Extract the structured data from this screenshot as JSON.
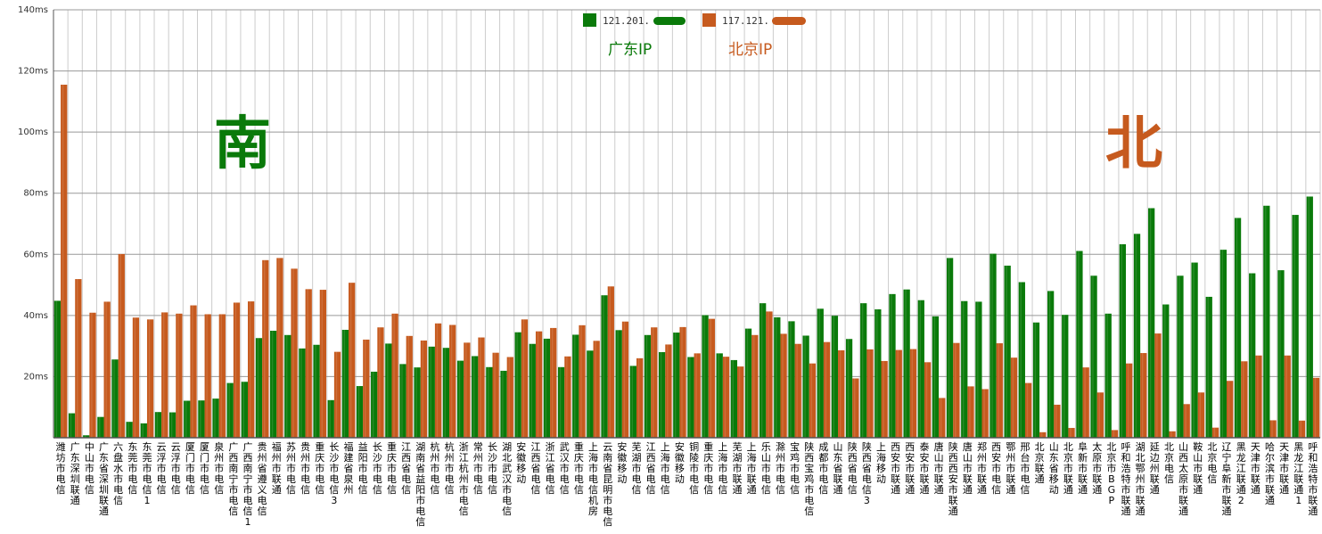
{
  "chart_data": {
    "type": "bar",
    "title": "",
    "xlabel": "",
    "ylabel": "",
    "ylim": [
      0,
      140
    ],
    "yticks": [
      "20ms",
      "40ms",
      "60ms",
      "80ms",
      "100ms",
      "120ms",
      "140ms"
    ],
    "grid": true,
    "legend_position": "top-center",
    "colors": {
      "guangdong": "#0a7a0a",
      "beijing": "#c65a1e",
      "grid": "#cccccc",
      "axis": "#555555"
    },
    "annotations": {
      "south": "南",
      "north": "北"
    },
    "categories": [
      "潍坊市电信",
      "广东深圳联通",
      "中山市电信",
      "广东省深圳联通",
      "六盘水市电信",
      "东莞市电信",
      "东莞市电信1",
      "云浮市电信",
      "云浮市电信",
      "厦门市电信",
      "厦门市电信",
      "泉州市电信",
      "广西南宁市电信",
      "广西南宁市电信1",
      "贵州省遵义电信",
      "福州市联通",
      "苏州市电信",
      "贵州市电信",
      "重庆市电信",
      "长沙市电信3",
      "福建省泉州",
      "益阳市电信",
      "长沙市电信",
      "重庆市电信",
      "江西省电信",
      "湖南省益阳市电信",
      "杭州市电信",
      "杭州市电信",
      "浙江杭州市电信",
      "常州市电信",
      "长沙市电信",
      "湖北武汉市电信",
      "安徽移动",
      "江西省电信",
      "浙江省电信",
      "武汉市电信",
      "重庆市电信",
      "上海市电信机房",
      "云南省昆明市电信",
      "安徽移动",
      "芜湖市电信",
      "江西省电信",
      "上海市电信",
      "安徽移动",
      "铜陵市电信",
      "重庆市电信",
      "上海市电信",
      "芜湖市联通",
      "上海市联通",
      "乐山市电信",
      "滁州市电信",
      "宝鸡市电信",
      "陕西宝鸡市电信",
      "成都市电信",
      "山东省联通",
      "陕西省电信",
      "陕西省电信3",
      "上海移动",
      "西安市联通",
      "西安市联通",
      "泰安市联通",
      "唐山市联通",
      "陕西西安市联通",
      "唐山市联通",
      "郑州市联通",
      "西安市电信",
      "鄂州市联通",
      "邢台市电信",
      "北京联通",
      "山东省移动",
      "北京市联通",
      "阜新市联通",
      "太原市联通",
      "北京市BGP",
      "呼和浩特市联通",
      "湖北鄂州市联通",
      "延边州联通",
      "北京电信",
      "山西太原市联通",
      "鞍山市联通",
      "北京电信",
      "辽宁阜新市联通",
      "黑龙江联通2",
      "天津市联通",
      "哈尔滨市联通",
      "天津市联通",
      "黑龙江联通1",
      "呼和浩特市联通"
    ],
    "series": [
      {
        "name": "121.201.",
        "label": "广东IP",
        "values": [
          44.8,
          8.0,
          0.8,
          6.8,
          25.6,
          5.2,
          4.7,
          8.4,
          8.3,
          12.1,
          12.2,
          12.8,
          17.9,
          18.3,
          32.6,
          35.0,
          33.6,
          29.2,
          30.4,
          12.3,
          35.3,
          16.9,
          21.6,
          30.8,
          24.1,
          23.0,
          29.8,
          29.4,
          25.2,
          26.7,
          23.1,
          21.9,
          34.5,
          30.7,
          32.4,
          23.1,
          33.7,
          28.5,
          46.6,
          35.2,
          23.5,
          33.6,
          28.0,
          34.4,
          26.4,
          40.1,
          27.6,
          25.4,
          35.7,
          44.0,
          39.4,
          38.1,
          33.4,
          42.2,
          39.9,
          32.3,
          44.0,
          42.0,
          47.0,
          48.5,
          45.0,
          39.7,
          58.8,
          44.7,
          44.5,
          60.2,
          56.3,
          50.9,
          37.7,
          48.0,
          40.2,
          61.1,
          53.0,
          40.6,
          63.3,
          66.7,
          75.1,
          43.6,
          53.0,
          57.3,
          46.1,
          61.5,
          71.9,
          53.8,
          75.9,
          54.8,
          72.9,
          78.9
        ]
      },
      {
        "name": "117.121.",
        "label": "北京IP",
        "values": [
          115.5,
          51.9,
          40.9,
          44.5,
          60.1,
          39.3,
          38.7,
          41.0,
          40.6,
          43.3,
          40.4,
          40.4,
          44.2,
          44.6,
          58.1,
          58.8,
          55.3,
          48.6,
          48.4,
          28.1,
          50.7,
          32.1,
          36.1,
          40.6,
          33.3,
          31.8,
          37.4,
          36.9,
          31.1,
          32.8,
          27.8,
          26.4,
          38.7,
          34.8,
          35.9,
          26.6,
          36.8,
          31.7,
          49.5,
          38.0,
          26.0,
          36.1,
          30.5,
          36.2,
          27.6,
          38.9,
          26.5,
          23.3,
          33.6,
          41.3,
          34.0,
          30.7,
          24.3,
          31.3,
          28.6,
          19.4,
          28.9,
          25.1,
          28.7,
          29.0,
          24.7,
          13.0,
          31.0,
          16.8,
          15.9,
          30.9,
          26.2,
          17.9,
          1.8,
          10.8,
          3.2,
          23.0,
          14.8,
          2.5,
          24.3,
          27.7,
          34.1,
          2.1,
          11.0,
          14.8,
          3.3,
          18.6,
          25.0,
          26.9,
          5.7,
          26.9,
          5.6,
          19.6
        ]
      }
    ]
  }
}
